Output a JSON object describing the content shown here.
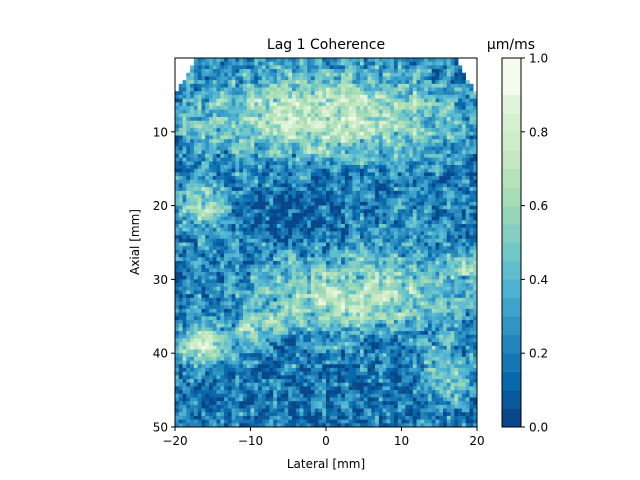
{
  "chart_data": {
    "type": "heatmap",
    "title": "Lag 1 Coherence",
    "xlabel": "Lateral [mm]",
    "ylabel": "Axial [mm]",
    "xlim": [
      -20,
      20
    ],
    "ylim": [
      50,
      0
    ],
    "y_axis_inverted": true,
    "xticks": [
      "−20",
      "−10",
      "0",
      "10",
      "20"
    ],
    "yticks": [
      "10",
      "20",
      "30",
      "40",
      "50"
    ],
    "grid": false,
    "colormap": "GnBu_r",
    "colorbar": {
      "label": "μm/ms",
      "range": [
        0.0,
        1.0
      ],
      "ticks": [
        "0.0",
        "0.2",
        "0.4",
        "0.6",
        "0.8",
        "1.0"
      ],
      "levels": 20,
      "colors": [
        "#084081",
        "#0868ac",
        "#2b8cbe",
        "#4eb3d3",
        "#7bccc4",
        "#a8ddb5",
        "#ccebc5",
        "#e0f3db",
        "#f7fcf0"
      ]
    },
    "regions": [
      {
        "name": "near-field bright band",
        "x": [
          -20,
          20
        ],
        "y": [
          1,
          15
        ],
        "value": 0.75
      },
      {
        "name": "upper-left bright cluster",
        "x": [
          -20,
          -12
        ],
        "y": [
          16,
          24
        ],
        "value": 0.7
      },
      {
        "name": "mid bright blobs",
        "x": [
          -8,
          12
        ],
        "y": [
          18,
          30
        ],
        "value": 0.65
      },
      {
        "name": "dark cavity",
        "x": [
          -16,
          12
        ],
        "y": [
          15,
          30
        ],
        "value": 0.08
      },
      {
        "name": "diagonal bright band",
        "x": [
          -12,
          20
        ],
        "y": [
          27,
          38
        ],
        "value": 0.7
      },
      {
        "name": "lower-left bright patch",
        "x": [
          -20,
          -12
        ],
        "y": [
          36,
          42
        ],
        "value": 0.8
      },
      {
        "name": "lower-right bright spots",
        "x": [
          12,
          20
        ],
        "y": [
          38,
          48
        ],
        "value": 0.6
      },
      {
        "name": "deep dark region",
        "x": [
          -20,
          20
        ],
        "y": [
          42,
          50
        ],
        "value": 0.15
      }
    ]
  }
}
